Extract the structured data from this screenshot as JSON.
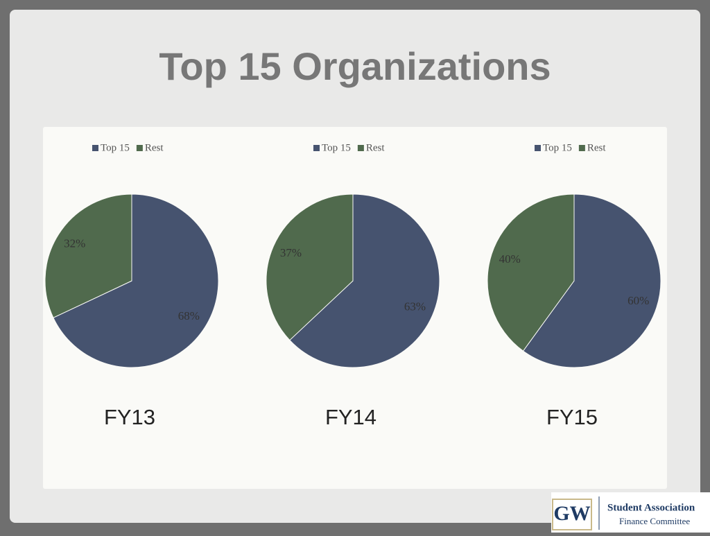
{
  "slide": {
    "title": "Top 15 Organizations"
  },
  "logo": {
    "mark": "GW",
    "line1": "Student Association",
    "line2": "Finance Committee"
  },
  "chart_data": [
    {
      "type": "pie",
      "title": "FY13",
      "categories": [
        "Top 15",
        "Rest"
      ],
      "values": [
        68,
        32
      ],
      "value_labels": [
        "68%",
        "32%"
      ],
      "colors": [
        "#46536f",
        "#506a4d"
      ],
      "legend": "top"
    },
    {
      "type": "pie",
      "title": "FY14",
      "categories": [
        "Top 15",
        "Rest"
      ],
      "values": [
        63,
        37
      ],
      "value_labels": [
        "63%",
        "37%"
      ],
      "colors": [
        "#46536f",
        "#506a4d"
      ],
      "legend": "top"
    },
    {
      "type": "pie",
      "title": "FY15",
      "categories": [
        "Top 15",
        "Rest"
      ],
      "values": [
        60,
        40
      ],
      "value_labels": [
        "60%",
        "40%"
      ],
      "colors": [
        "#46536f",
        "#506a4d"
      ],
      "legend": "top"
    }
  ]
}
